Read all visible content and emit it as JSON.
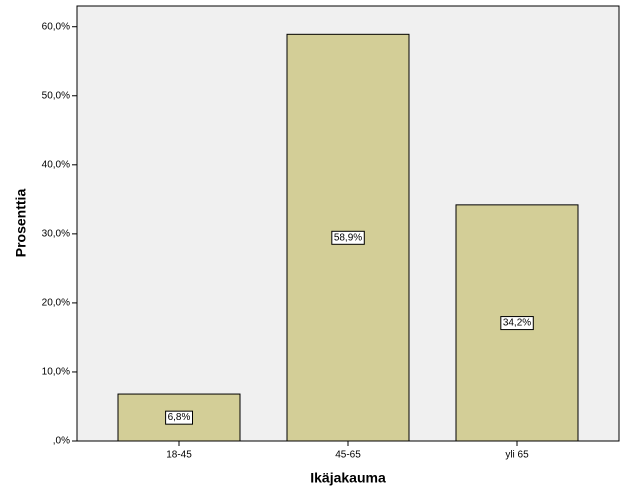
{
  "chart_data": {
    "type": "bar",
    "x_label": "Ikäjakauma",
    "y_label": "Prosenttia",
    "categories": [
      "18-45",
      "45-65",
      "yli 65"
    ],
    "values": [
      6.8,
      58.9,
      34.2
    ],
    "value_labels": [
      "6,8%",
      "58,9%",
      "34,2%"
    ],
    "color": "#d3ce97",
    "ylim": [
      0,
      63
    ],
    "yticks": [
      {
        "value": 0,
        "label": ",0%"
      },
      {
        "value": 10,
        "label": "10,0%"
      },
      {
        "value": 20,
        "label": "20,0%"
      },
      {
        "value": 30,
        "label": "30,0%"
      },
      {
        "value": 40,
        "label": "40,0%"
      },
      {
        "value": 50,
        "label": "50,0%"
      },
      {
        "value": 60,
        "label": "60,0%"
      }
    ]
  }
}
